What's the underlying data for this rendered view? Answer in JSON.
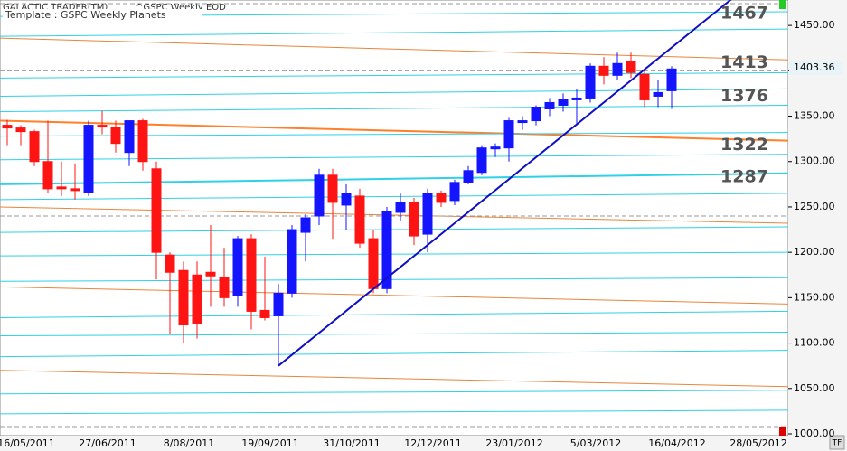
{
  "chart_data": {
    "type": "candlestick",
    "header": "GALACTIC TRADER(TM)",
    "symbol": "^GSPC Weekly EOD",
    "template": "Template : GSPC Weekly Planets",
    "categories": [
      null,
      "16/05/2011",
      null,
      null,
      null,
      null,
      null,
      "27/06/2011",
      null,
      null,
      null,
      null,
      null,
      "8/08/2011",
      null,
      null,
      null,
      null,
      null,
      "19/09/2011",
      null,
      null,
      null,
      null,
      null,
      "31/10/2011",
      null,
      null,
      null,
      null,
      null,
      "12/12/2011",
      null,
      null,
      null,
      null,
      null,
      "23/01/2012",
      null,
      null,
      null,
      null,
      null,
      "5/03/2012",
      null,
      null,
      null,
      null,
      null,
      "16/04/2012",
      null,
      null,
      null,
      null,
      null,
      "28/05/2012",
      null,
      null
    ],
    "open": [
      1340,
      1337,
      1333,
      1300,
      1272,
      1270,
      1266,
      1340,
      1338,
      1310,
      1345,
      1292,
      1197,
      1180,
      1175,
      1178,
      1172,
      1152,
      1215,
      1136,
      1130,
      1155,
      1222,
      1240,
      1285,
      1252,
      1262,
      1215,
      1160,
      1244,
      1255,
      1220,
      1265,
      1257,
      1277,
      1288,
      1314,
      1315,
      1343,
      1345,
      1358,
      1362,
      1368,
      1370,
      1405,
      1395,
      1410,
      1396,
      1372,
      1378,
      null,
      null,
      null,
      null,
      null,
      null,
      null,
      null
    ],
    "high": [
      1346,
      1340,
      1335,
      1345,
      1300,
      1298,
      1345,
      1356,
      1345,
      1345,
      1347,
      1300,
      1200,
      1190,
      1190,
      1230,
      1205,
      1218,
      1220,
      1195,
      1165,
      1230,
      1242,
      1292,
      1292,
      1275,
      1270,
      1225,
      1250,
      1265,
      1260,
      1270,
      1268,
      1280,
      1295,
      1318,
      1320,
      1348,
      1350,
      1362,
      1370,
      1375,
      1380,
      1408,
      1415,
      1420,
      1420,
      1400,
      1390,
      1405,
      null,
      null,
      null,
      null,
      null,
      null,
      null,
      null
    ],
    "low": [
      1318,
      1318,
      1295,
      1265,
      1262,
      1258,
      1262,
      1330,
      1310,
      1295,
      1290,
      1170,
      1110,
      1100,
      1105,
      1140,
      1140,
      1140,
      1115,
      1125,
      1075,
      1150,
      1190,
      1230,
      1215,
      1225,
      1205,
      1155,
      1155,
      1235,
      1208,
      1200,
      1250,
      1252,
      1275,
      1285,
      1305,
      1300,
      1335,
      1340,
      1350,
      1355,
      1340,
      1365,
      1385,
      1390,
      1392,
      1360,
      1360,
      1358,
      null,
      null,
      null,
      null,
      null,
      null,
      null,
      null
    ],
    "close": [
      1337,
      1333,
      1300,
      1270,
      1270,
      1268,
      1340,
      1338,
      1320,
      1345,
      1300,
      1200,
      1178,
      1120,
      1122,
      1174,
      1150,
      1215,
      1135,
      1128,
      1155,
      1225,
      1238,
      1285,
      1255,
      1265,
      1210,
      1160,
      1245,
      1255,
      1218,
      1265,
      1255,
      1277,
      1290,
      1315,
      1316,
      1345,
      1345,
      1360,
      1365,
      1368,
      1370,
      1405,
      1395,
      1408,
      1398,
      1368,
      1376,
      1402,
      null,
      null,
      null,
      null,
      null,
      null,
      null,
      null
    ],
    "up_color": "#1414ff",
    "down_color": "#ff1414",
    "ylim": [
      998,
      1478
    ],
    "yticks": [
      {
        "value": 1000,
        "label": "1000.00"
      },
      {
        "value": 1050,
        "label": "1050.00"
      },
      {
        "value": 1100,
        "label": "1100.00"
      },
      {
        "value": 1150,
        "label": "1150.00"
      },
      {
        "value": 1200,
        "label": "1200.00"
      },
      {
        "value": 1250,
        "label": "1250.00"
      },
      {
        "value": 1300,
        "label": "1300.00"
      },
      {
        "value": 1350,
        "label": "1350.00"
      },
      {
        "value": 1400,
        "label": "1400.00"
      },
      {
        "value": 1450,
        "label": "1450.00"
      }
    ],
    "last_price": 1403.36,
    "level_labels": [
      1467,
      1413,
      1376,
      1322,
      1287
    ],
    "planet_lines": [
      {
        "color": "#ff7f2a",
        "width": 2,
        "values": [
          1345,
          1323
        ]
      },
      {
        "color": "#e8853a",
        "width": 1,
        "values": [
          1436,
          1412
        ]
      },
      {
        "color": "#e8853a",
        "width": 1,
        "values": [
          1250,
          1232
        ]
      },
      {
        "color": "#e8853a",
        "width": 1,
        "values": [
          1162,
          1143
        ]
      },
      {
        "color": "#e8853a",
        "width": 1,
        "values": [
          1070,
          1052
        ]
      },
      {
        "color": "#2fd0e8",
        "width": 2,
        "values": [
          1275,
          1287
        ]
      },
      {
        "color": "#2fd0e8",
        "width": 1,
        "values": [
          1460,
          1465
        ]
      },
      {
        "color": "#2fd0e8",
        "width": 1,
        "values": [
          1438,
          1446
        ]
      },
      {
        "color": "#2fd0e8",
        "width": 1,
        "values": [
          1392,
          1398
        ]
      },
      {
        "color": "#2fd0e8",
        "width": 1,
        "values": [
          1372,
          1380
        ]
      },
      {
        "color": "#2fd0e8",
        "width": 1,
        "values": [
          1355,
          1362
        ]
      },
      {
        "color": "#2fd0e8",
        "width": 1,
        "values": [
          1328,
          1332
        ]
      },
      {
        "color": "#2fd0e8",
        "width": 1,
        "values": [
          1302,
          1308
        ]
      },
      {
        "color": "#2fd0e8",
        "width": 1,
        "values": [
          1258,
          1265
        ]
      },
      {
        "color": "#2fd0e8",
        "width": 1,
        "values": [
          1222,
          1228
        ]
      },
      {
        "color": "#2fd0e8",
        "width": 1,
        "values": [
          1196,
          1200
        ]
      },
      {
        "color": "#2fd0e8",
        "width": 1,
        "values": [
          1168,
          1172
        ]
      },
      {
        "color": "#2fd0e8",
        "width": 1,
        "values": [
          1128,
          1135
        ]
      },
      {
        "color": "#2fd0e8",
        "width": 1,
        "values": [
          1108,
          1112
        ]
      },
      {
        "color": "#2fd0e8",
        "width": 1,
        "values": [
          1085,
          1092
        ]
      },
      {
        "color": "#2fd0e8",
        "width": 1,
        "values": [
          1044,
          1048
        ]
      },
      {
        "color": "#2fd0e8",
        "width": 1,
        "values": [
          1022,
          1026
        ]
      },
      {
        "color": "#999999",
        "width": 1,
        "values": [
          1474,
          1474
        ],
        "dashed": true
      },
      {
        "color": "#999999",
        "width": 1,
        "values": [
          1400,
          1400
        ],
        "dashed": true
      },
      {
        "color": "#999999",
        "width": 1,
        "values": [
          1240,
          1240
        ],
        "dashed": true
      },
      {
        "color": "#999999",
        "width": 1,
        "values": [
          1110,
          1110
        ],
        "dashed": true
      },
      {
        "color": "#999999",
        "width": 1,
        "values": [
          1008,
          1008
        ],
        "dashed": true
      }
    ],
    "trend_line": {
      "color": "#1010c0",
      "values": [
        1075,
        1480
      ],
      "x": [
        20,
        53.5
      ]
    }
  }
}
